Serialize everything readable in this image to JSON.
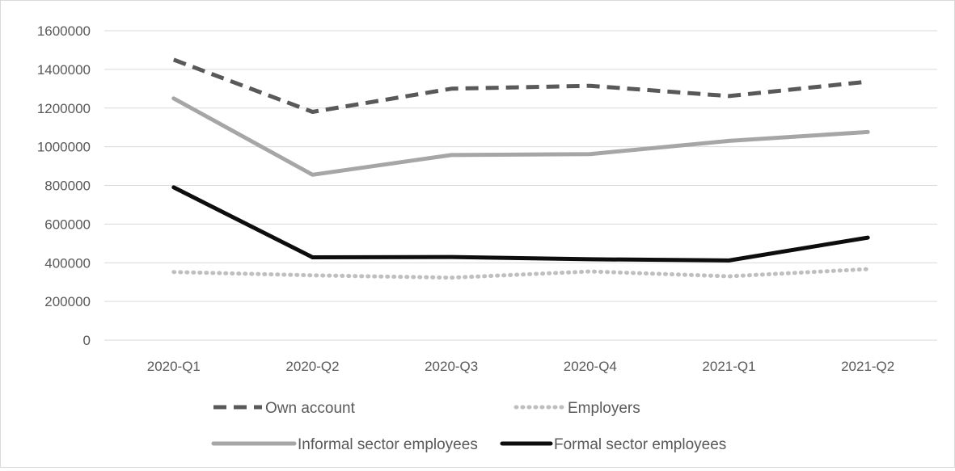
{
  "chart_data": {
    "type": "line",
    "categories": [
      "2020-Q1",
      "2020-Q2",
      "2020-Q3",
      "2020-Q4",
      "2021-Q1",
      "2021-Q2"
    ],
    "ylim": [
      0,
      1600000
    ],
    "yticks": [
      0,
      200000,
      400000,
      600000,
      800000,
      1000000,
      1200000,
      1400000,
      1600000
    ],
    "ytick_labels": [
      "0",
      "200000",
      "400000",
      "600000",
      "800000",
      "1000000",
      "1200000",
      "1400000",
      "1600000"
    ],
    "grid": true,
    "legend_position": "bottom",
    "series": [
      {
        "name": "Own account",
        "values": [
          1450000,
          1180000,
          1300000,
          1315000,
          1262000,
          1337000
        ],
        "color": "#595959",
        "style": "dashed"
      },
      {
        "name": "Employers",
        "values": [
          352000,
          335000,
          323000,
          355000,
          330000,
          367000
        ],
        "color": "#bfbfbf",
        "style": "dotted"
      },
      {
        "name": "Informal sector employees",
        "values": [
          1250000,
          855000,
          957000,
          962000,
          1030000,
          1076000
        ],
        "color": "#a6a6a6",
        "style": "solid"
      },
      {
        "name": "Formal sector employees",
        "values": [
          790000,
          428000,
          430000,
          418000,
          412000,
          530000
        ],
        "color": "#0d0d0d",
        "style": "solid"
      }
    ]
  }
}
